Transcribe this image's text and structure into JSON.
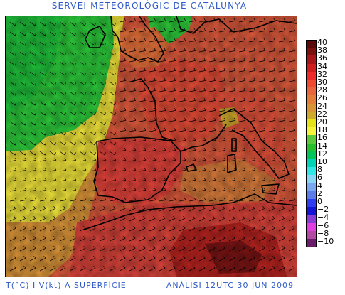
{
  "header": {
    "title": "SERVEI METEOROLÒGIC DE CATALUNYA"
  },
  "footer": {
    "left": "T(°C) I V(kt) A SUPERFÍCIE",
    "right": "ANÀLISI 12UTC 30 JUN 2009"
  },
  "legend": {
    "unit": "°C",
    "items": [
      {
        "label": "40",
        "color": "#5a0a0a"
      },
      {
        "label": "38",
        "color": "#7a1010"
      },
      {
        "label": "36",
        "color": "#a8161a"
      },
      {
        "label": "34",
        "color": "#d01e1e"
      },
      {
        "label": "32",
        "color": "#ee2b2b"
      },
      {
        "label": "30",
        "color": "#f04a32"
      },
      {
        "label": "28",
        "color": "#e9653c"
      },
      {
        "label": "26",
        "color": "#e27e3a"
      },
      {
        "label": "24",
        "color": "#d99438"
      },
      {
        "label": "22",
        "color": "#cfa92c"
      },
      {
        "label": "20",
        "color": "#e6e21a"
      },
      {
        "label": "18",
        "color": "#f6f43a"
      },
      {
        "label": "16",
        "color": "#5ac93a"
      },
      {
        "label": "14",
        "color": "#27c02c"
      },
      {
        "label": "12",
        "color": "#00c45a"
      },
      {
        "label": "10",
        "color": "#00d4b4"
      },
      {
        "label": "8",
        "color": "#33e6e6"
      },
      {
        "label": "6",
        "color": "#88d6f6"
      },
      {
        "label": "4",
        "color": "#7aa8f0"
      },
      {
        "label": "2",
        "color": "#5c7cea"
      },
      {
        "label": "0",
        "color": "#2e3cf2"
      },
      {
        "label": "−2",
        "color": "#1414d8"
      },
      {
        "label": "−4",
        "color": "#8a3cd6"
      },
      {
        "label": "−6",
        "color": "#e040e0"
      },
      {
        "label": "−8",
        "color": "#b44aa4"
      },
      {
        "label": "−10",
        "color": "#6a1e6a"
      }
    ]
  },
  "map": {
    "region": "Western Europe and North Africa",
    "variables": [
      "surface temperature",
      "surface wind"
    ],
    "wind_symbol": "barbs",
    "coast_color": "#000000"
  }
}
